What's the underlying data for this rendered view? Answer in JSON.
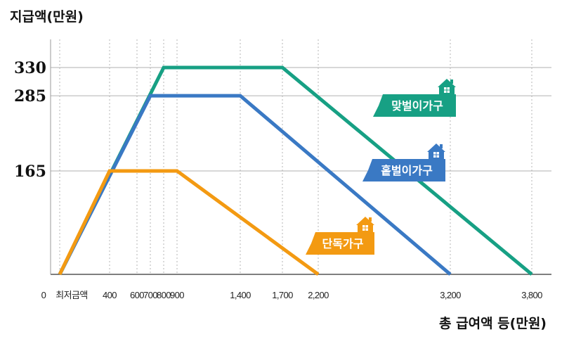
{
  "chart_data": {
    "type": "line",
    "ylabel": "지급액(만원)",
    "xlabel": "총 급여액 등(만원)",
    "x_tick_labels": [
      "0",
      "최저금액",
      "400",
      "600",
      "700",
      "800",
      "900",
      "1,400",
      "1,700",
      "2,200",
      "3,200",
      "3,800"
    ],
    "x_tick_values": [
      0,
      100,
      400,
      600,
      700,
      800,
      900,
      1400,
      1700,
      2200,
      3200,
      3800
    ],
    "y_tick_labels": [
      "165",
      "285",
      "330"
    ],
    "y_tick_values": [
      165,
      285,
      330
    ],
    "ylim": [
      0,
      330
    ],
    "grid": "dotted vertical at x ticks, solid horizontal at y ticks",
    "series": [
      {
        "name": "맞벌이가구",
        "color": "#17a084",
        "icon": "house-icon",
        "x": [
          100,
          800,
          1700,
          3800
        ],
        "y": [
          0,
          330,
          330,
          0
        ]
      },
      {
        "name": "홑벌이가구",
        "color": "#3a79c4",
        "icon": "house-icon",
        "x": [
          100,
          700,
          1400,
          3200
        ],
        "y": [
          0,
          285,
          285,
          0
        ]
      },
      {
        "name": "단독가구",
        "color": "#f39a12",
        "icon": "house-icon",
        "x": [
          100,
          400,
          900,
          2200
        ],
        "y": [
          0,
          165,
          165,
          0
        ]
      }
    ]
  }
}
